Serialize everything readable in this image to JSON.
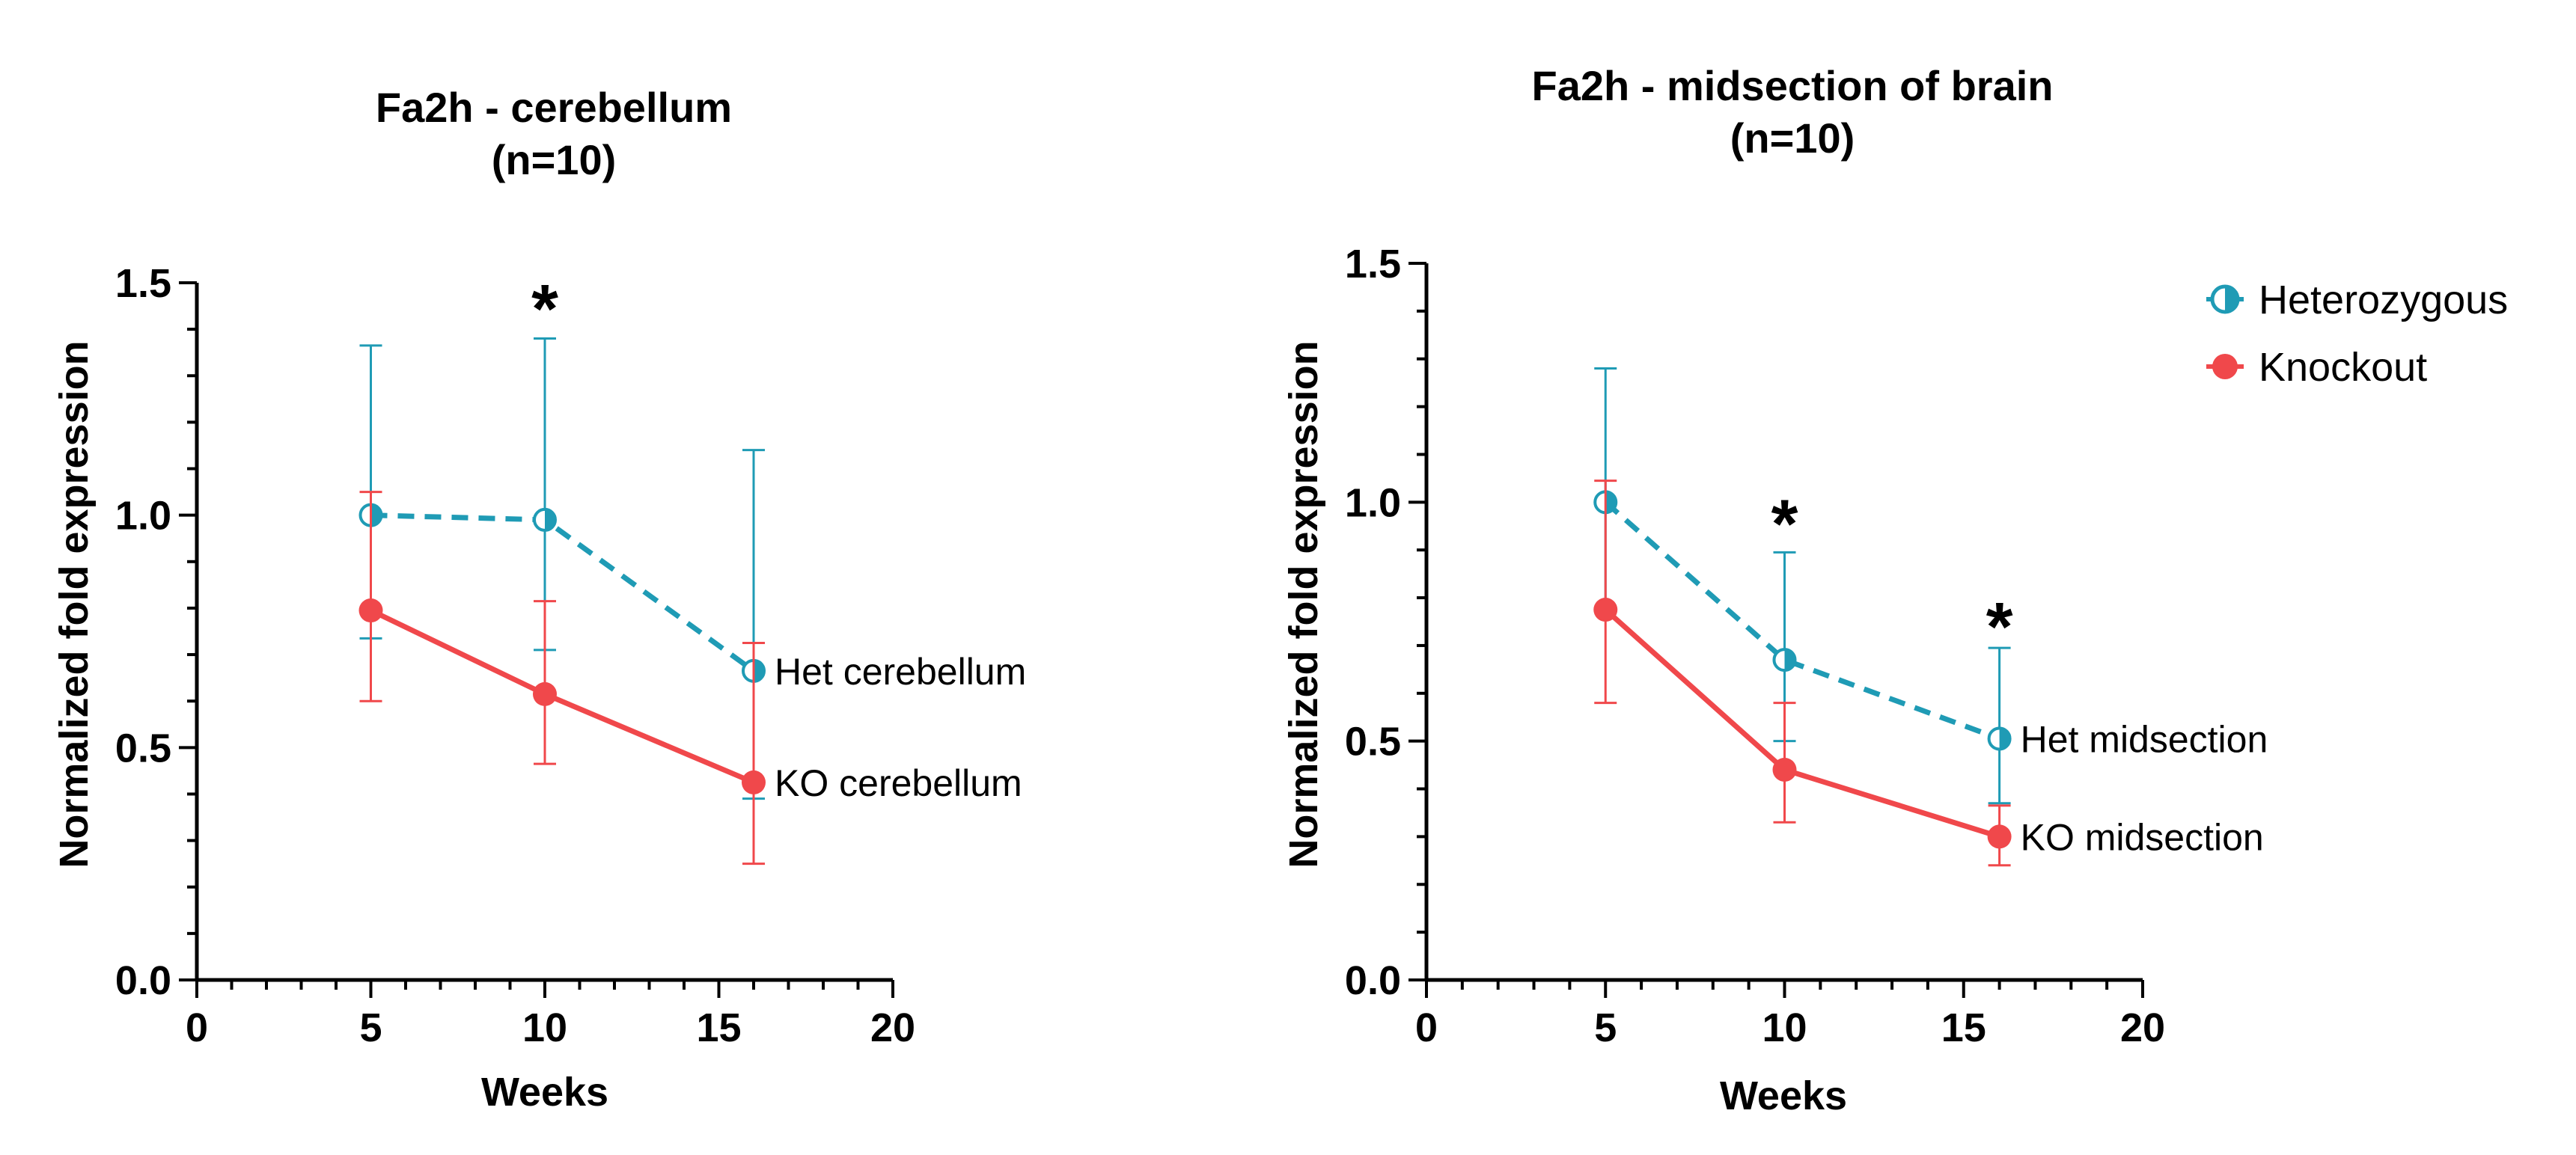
{
  "colors": {
    "het": "#1f9bb5",
    "ko": "#f0484b",
    "axis": "#000000"
  },
  "legend": {
    "position": "top-right",
    "items": [
      {
        "label": "Heterozygous",
        "series": "het"
      },
      {
        "label": "Knockout",
        "series": "ko"
      }
    ]
  },
  "chart_data": [
    {
      "type": "line",
      "title_line1": "Fa2h - cerebellum",
      "title_line2": "(n=10)",
      "xlabel": "Weeks",
      "ylabel": "Normalized fold expression",
      "xlim": [
        0,
        20
      ],
      "ylim": [
        0,
        1.5
      ],
      "xticks": [
        0,
        5,
        10,
        15,
        20
      ],
      "yticks": [
        0.0,
        0.5,
        1.0,
        1.5
      ],
      "xtick_labels": [
        "0",
        "5",
        "10",
        "15",
        "20"
      ],
      "ytick_labels": [
        "0.0",
        "0.5",
        "1.0",
        "1.5"
      ],
      "series": [
        {
          "key": "het",
          "name": "Het cerebellum",
          "style": "dashed",
          "x": [
            5,
            10,
            16
          ],
          "y": [
            1.0,
            0.99,
            0.665
          ],
          "err_upper": [
            1.365,
            1.38,
            1.14
          ],
          "err_lower": [
            0.735,
            0.71,
            0.39
          ]
        },
        {
          "key": "ko",
          "name": "KO cerebellum",
          "style": "solid",
          "x": [
            5,
            10,
            16
          ],
          "y": [
            0.795,
            0.615,
            0.425
          ],
          "err_upper": [
            1.05,
            0.815,
            0.725
          ],
          "err_lower": [
            0.6,
            0.465,
            0.25
          ]
        }
      ],
      "significance": [
        {
          "x": 10,
          "y": 1.47,
          "label": "*"
        }
      ]
    },
    {
      "type": "line",
      "title_line1": "Fa2h - midsection of brain",
      "title_line2": "(n=10)",
      "xlabel": "Weeks",
      "ylabel": "Normalized fold expression",
      "xlim": [
        0,
        20
      ],
      "ylim": [
        0,
        1.5
      ],
      "xticks": [
        0,
        5,
        10,
        15,
        20
      ],
      "yticks": [
        0.0,
        0.5,
        1.0,
        1.5
      ],
      "xtick_labels": [
        "0",
        "5",
        "10",
        "15",
        "20"
      ],
      "ytick_labels": [
        "0.0",
        "0.5",
        "1.0",
        "1.5"
      ],
      "series": [
        {
          "key": "het",
          "name": "Het midsection",
          "style": "dashed",
          "x": [
            5,
            10,
            16
          ],
          "y": [
            1.0,
            0.67,
            0.505
          ],
          "err_upper": [
            1.28,
            0.895,
            0.695
          ],
          "err_lower": [
            0.78,
            0.5,
            0.37
          ]
        },
        {
          "key": "ko",
          "name": "KO midsection",
          "style": "solid",
          "x": [
            5,
            10,
            16
          ],
          "y": [
            0.775,
            0.44,
            0.3
          ],
          "err_upper": [
            1.045,
            0.58,
            0.365
          ],
          "err_lower": [
            0.58,
            0.33,
            0.24
          ]
        }
      ],
      "significance": [
        {
          "x": 10,
          "y": 0.98,
          "label": "*"
        },
        {
          "x": 16,
          "y": 0.765,
          "label": "*"
        }
      ]
    }
  ]
}
